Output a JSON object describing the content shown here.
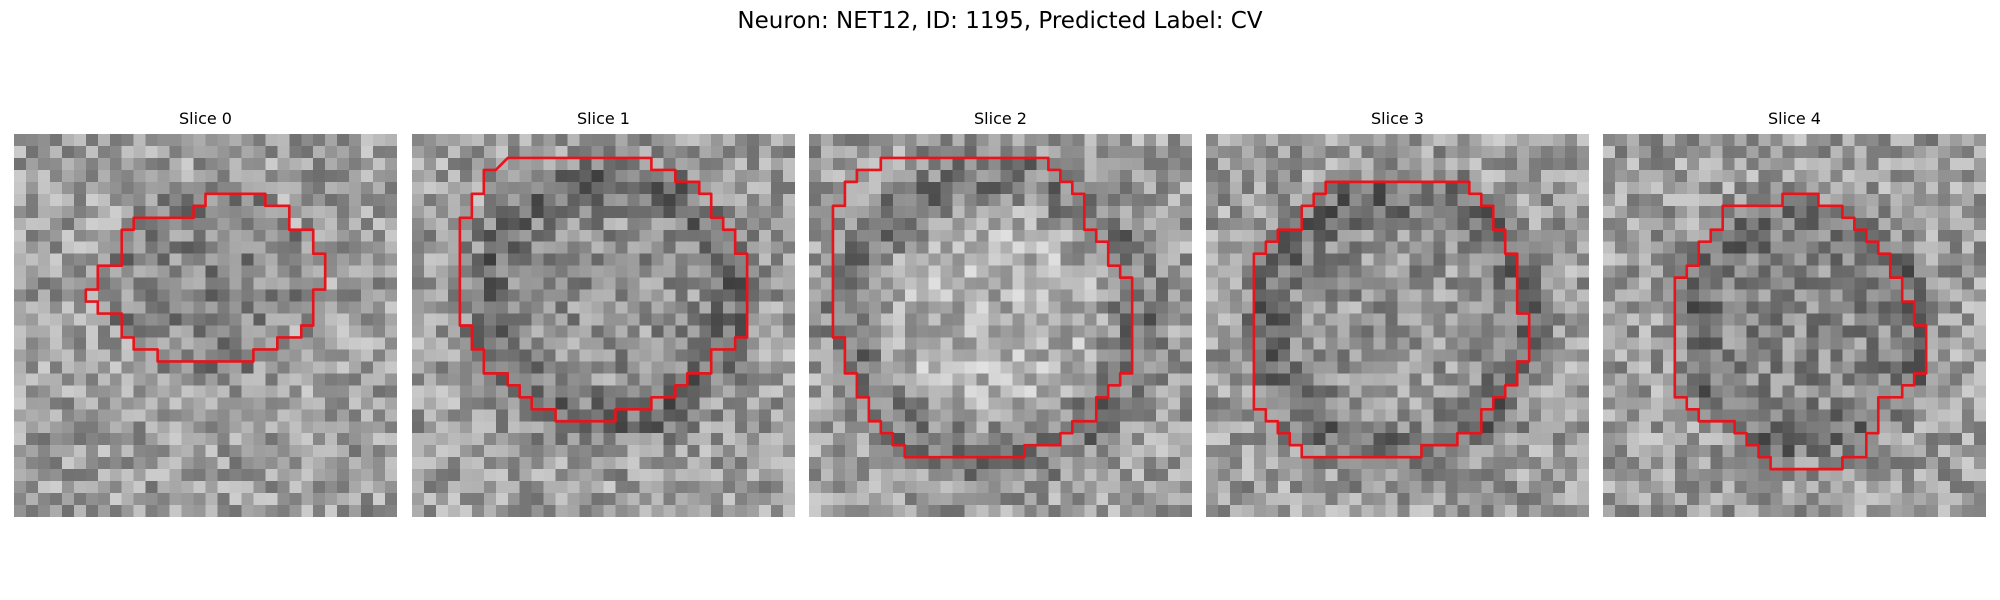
{
  "suptitle": "Neuron: NET12, ID: 1195, Predicted Label: CV",
  "contour_color": "#e8141c",
  "panels": [
    {
      "title": "Slice 0",
      "seed": 11,
      "dark_center": 0.42,
      "ring": 0.0,
      "contour": [
        [
          18,
          5
        ],
        [
          21,
          5
        ],
        [
          21,
          6
        ],
        [
          23,
          6
        ],
        [
          23,
          8
        ],
        [
          25,
          8
        ],
        [
          25,
          10
        ],
        [
          26,
          10
        ],
        [
          26,
          13
        ],
        [
          25,
          13
        ],
        [
          25,
          16
        ],
        [
          24,
          16
        ],
        [
          24,
          17
        ],
        [
          22,
          17
        ],
        [
          22,
          18
        ],
        [
          20,
          18
        ],
        [
          20,
          19
        ],
        [
          12,
          19
        ],
        [
          12,
          18
        ],
        [
          10,
          18
        ],
        [
          10,
          17
        ],
        [
          9,
          17
        ],
        [
          9,
          15
        ],
        [
          7,
          15
        ],
        [
          7,
          14
        ],
        [
          6,
          14
        ],
        [
          6,
          13
        ],
        [
          7,
          13
        ],
        [
          7,
          11
        ],
        [
          9,
          11
        ],
        [
          9,
          8
        ],
        [
          10,
          8
        ],
        [
          10,
          7
        ],
        [
          15,
          7
        ],
        [
          15,
          6
        ],
        [
          16,
          6
        ],
        [
          16,
          5
        ]
      ]
    },
    {
      "title": "Slice 1",
      "seed": 23,
      "dark_center": 0.2,
      "ring": 0.55,
      "contour": [
        [
          8,
          2
        ],
        [
          20,
          2
        ],
        [
          20,
          3
        ],
        [
          22,
          3
        ],
        [
          22,
          4
        ],
        [
          24,
          4
        ],
        [
          24,
          5
        ],
        [
          25,
          5
        ],
        [
          25,
          7
        ],
        [
          26,
          7
        ],
        [
          26,
          8
        ],
        [
          27,
          8
        ],
        [
          27,
          10
        ],
        [
          28,
          10
        ],
        [
          28,
          17
        ],
        [
          27,
          17
        ],
        [
          27,
          18
        ],
        [
          25,
          18
        ],
        [
          25,
          20
        ],
        [
          23,
          20
        ],
        [
          23,
          21
        ],
        [
          22,
          21
        ],
        [
          22,
          22
        ],
        [
          20,
          22
        ],
        [
          20,
          23
        ],
        [
          17,
          23
        ],
        [
          17,
          24
        ],
        [
          12,
          24
        ],
        [
          12,
          23
        ],
        [
          10,
          23
        ],
        [
          10,
          22
        ],
        [
          9,
          22
        ],
        [
          9,
          21
        ],
        [
          8,
          21
        ],
        [
          8,
          20
        ],
        [
          6,
          20
        ],
        [
          6,
          18
        ],
        [
          5,
          18
        ],
        [
          5,
          16
        ],
        [
          4,
          16
        ],
        [
          4,
          7
        ],
        [
          5,
          7
        ],
        [
          5,
          5
        ],
        [
          6,
          5
        ],
        [
          6,
          3
        ],
        [
          7,
          3
        ]
      ]
    },
    {
      "title": "Slice 2",
      "seed": 37,
      "dark_center": -0.35,
      "ring": 0.8,
      "contour": [
        [
          6,
          2
        ],
        [
          20,
          2
        ],
        [
          20,
          3
        ],
        [
          21,
          3
        ],
        [
          21,
          4
        ],
        [
          22,
          4
        ],
        [
          22,
          5
        ],
        [
          23,
          5
        ],
        [
          23,
          8
        ],
        [
          24,
          8
        ],
        [
          24,
          9
        ],
        [
          25,
          9
        ],
        [
          25,
          11
        ],
        [
          26,
          11
        ],
        [
          26,
          12
        ],
        [
          27,
          12
        ],
        [
          27,
          20
        ],
        [
          26,
          20
        ],
        [
          26,
          21
        ],
        [
          25,
          21
        ],
        [
          25,
          22
        ],
        [
          24,
          22
        ],
        [
          24,
          24
        ],
        [
          22,
          24
        ],
        [
          22,
          25
        ],
        [
          21,
          25
        ],
        [
          21,
          26
        ],
        [
          18,
          26
        ],
        [
          18,
          27
        ],
        [
          8,
          27
        ],
        [
          8,
          26
        ],
        [
          7,
          26
        ],
        [
          7,
          25
        ],
        [
          6,
          25
        ],
        [
          6,
          24
        ],
        [
          5,
          24
        ],
        [
          5,
          22
        ],
        [
          4,
          22
        ],
        [
          4,
          20
        ],
        [
          3,
          20
        ],
        [
          3,
          17
        ],
        [
          2,
          17
        ],
        [
          2,
          6
        ],
        [
          3,
          6
        ],
        [
          3,
          4
        ],
        [
          4,
          4
        ],
        [
          4,
          3
        ],
        [
          6,
          3
        ]
      ]
    },
    {
      "title": "Slice 3",
      "seed": 51,
      "dark_center": 0.15,
      "ring": 0.6,
      "contour": [
        [
          10,
          4
        ],
        [
          22,
          4
        ],
        [
          22,
          5
        ],
        [
          23,
          5
        ],
        [
          23,
          6
        ],
        [
          24,
          6
        ],
        [
          24,
          8
        ],
        [
          25,
          8
        ],
        [
          25,
          10
        ],
        [
          26,
          10
        ],
        [
          26,
          15
        ],
        [
          27,
          15
        ],
        [
          27,
          19
        ],
        [
          26,
          19
        ],
        [
          26,
          21
        ],
        [
          25,
          21
        ],
        [
          25,
          22
        ],
        [
          24,
          22
        ],
        [
          24,
          23
        ],
        [
          23,
          23
        ],
        [
          23,
          25
        ],
        [
          21,
          25
        ],
        [
          21,
          26
        ],
        [
          18,
          26
        ],
        [
          18,
          27
        ],
        [
          8,
          27
        ],
        [
          8,
          26
        ],
        [
          7,
          26
        ],
        [
          7,
          25
        ],
        [
          6,
          25
        ],
        [
          6,
          24
        ],
        [
          5,
          24
        ],
        [
          5,
          23
        ],
        [
          4,
          23
        ],
        [
          4,
          10
        ],
        [
          5,
          10
        ],
        [
          5,
          9
        ],
        [
          6,
          9
        ],
        [
          6,
          8
        ],
        [
          8,
          8
        ],
        [
          8,
          6
        ],
        [
          9,
          6
        ],
        [
          9,
          5
        ],
        [
          10,
          5
        ]
      ]
    },
    {
      "title": "Slice 4",
      "seed": 67,
      "dark_center": 0.35,
      "ring": 0.4,
      "contour": [
        [
          10,
          6
        ],
        [
          15,
          6
        ],
        [
          15,
          5
        ],
        [
          18,
          5
        ],
        [
          18,
          6
        ],
        [
          20,
          6
        ],
        [
          20,
          7
        ],
        [
          21,
          7
        ],
        [
          21,
          8
        ],
        [
          22,
          8
        ],
        [
          22,
          9
        ],
        [
          23,
          9
        ],
        [
          23,
          10
        ],
        [
          24,
          10
        ],
        [
          24,
          12
        ],
        [
          25,
          12
        ],
        [
          25,
          14
        ],
        [
          26,
          14
        ],
        [
          26,
          16
        ],
        [
          27,
          16
        ],
        [
          27,
          20
        ],
        [
          26,
          20
        ],
        [
          26,
          21
        ],
        [
          25,
          21
        ],
        [
          25,
          22
        ],
        [
          23,
          22
        ],
        [
          23,
          25
        ],
        [
          22,
          25
        ],
        [
          22,
          27
        ],
        [
          20,
          27
        ],
        [
          20,
          28
        ],
        [
          14,
          28
        ],
        [
          14,
          27
        ],
        [
          13,
          27
        ],
        [
          13,
          26
        ],
        [
          12,
          26
        ],
        [
          12,
          25
        ],
        [
          11,
          25
        ],
        [
          11,
          24
        ],
        [
          8,
          24
        ],
        [
          8,
          23
        ],
        [
          7,
          23
        ],
        [
          7,
          22
        ],
        [
          6,
          22
        ],
        [
          6,
          12
        ],
        [
          7,
          12
        ],
        [
          7,
          11
        ],
        [
          8,
          11
        ],
        [
          8,
          9
        ],
        [
          9,
          9
        ],
        [
          9,
          8
        ],
        [
          10,
          8
        ]
      ]
    }
  ]
}
